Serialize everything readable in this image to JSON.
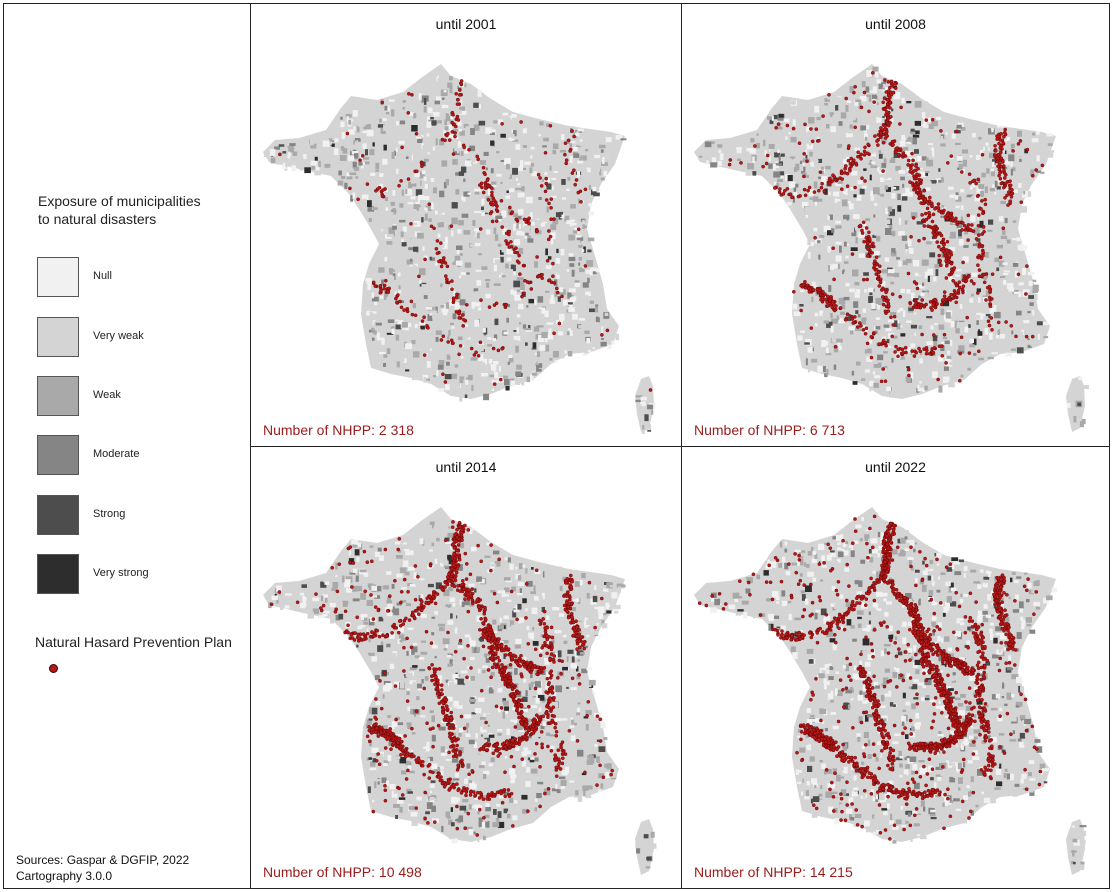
{
  "legend": {
    "title_line1": "Exposure of municipalities",
    "title_line2": "to natural disasters",
    "classes": [
      {
        "label": "Null",
        "color": "#f1f1f1"
      },
      {
        "label": "Very weak",
        "color": "#d4d4d4"
      },
      {
        "label": "Weak",
        "color": "#a9a9a9"
      },
      {
        "label": "Moderate",
        "color": "#858585"
      },
      {
        "label": "Strong",
        "color": "#4d4d4d"
      },
      {
        "label": "Very strong",
        "color": "#2d2d2d"
      }
    ],
    "nhpp_title": "Natural Hasard Prevention Plan",
    "nhpp_color": "#b81818"
  },
  "sources": {
    "line1": "Sources: Gaspar & DGFIP, 2022",
    "line2": "Cartography 3.0.0"
  },
  "panels": [
    {
      "title": "until 2001",
      "count_label": "Number of NHPP: 2 318",
      "count": 2318
    },
    {
      "title": "until 2008",
      "count_label": "Number of NHPP: 6 713",
      "count": 6713
    },
    {
      "title": "until 2014",
      "count_label": "Number of NHPP: 10 498",
      "count": 10498
    },
    {
      "title": "until 2022",
      "count_label": "Number of NHPP: 14 215",
      "count": 14215
    }
  ]
}
